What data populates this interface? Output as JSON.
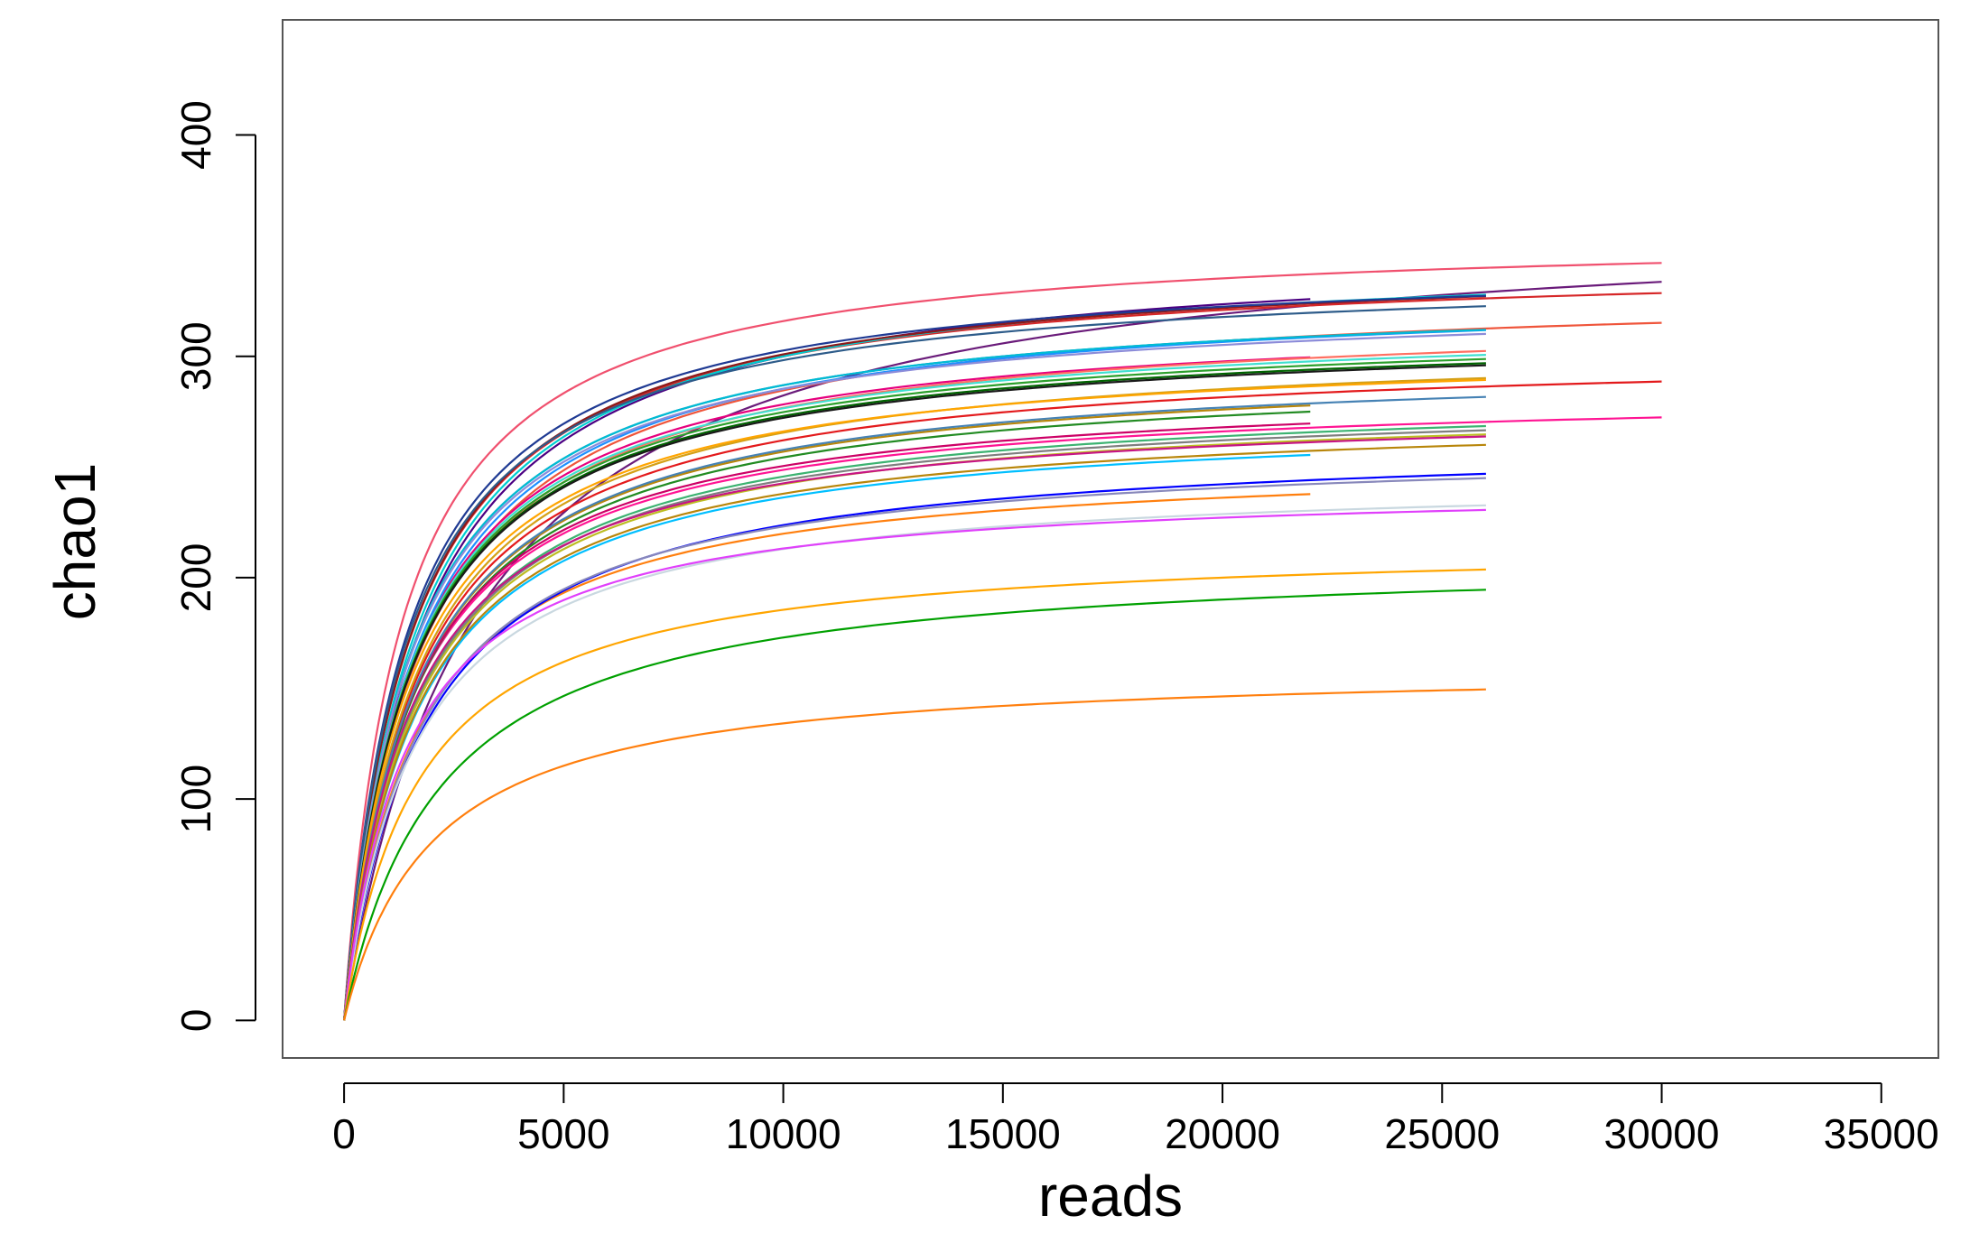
{
  "chart_data": {
    "type": "line",
    "title": "",
    "xlabel": "reads",
    "ylabel": "chao1",
    "xlim": [
      -1400,
      36300
    ],
    "ylim": [
      -17,
      452
    ],
    "x_ticks": [
      "0",
      "5000",
      "10000",
      "15000",
      "20000",
      "25000",
      "30000",
      "35000"
    ],
    "y_ticks": [
      "0",
      "100",
      "200",
      "300",
      "400"
    ],
    "grid": false,
    "legend": "none",
    "series": [
      {
        "end_x": 30000,
        "plateau": 367,
        "k": 3000,
        "color": "#6a1b7a"
      },
      {
        "end_x": 30000,
        "plateau": 357,
        "k": 1300,
        "color": "#f0506e"
      },
      {
        "end_x": 30000,
        "plateau": 345,
        "k": 1500,
        "color": "#d62728"
      },
      {
        "end_x": 30000,
        "plateau": 333,
        "k": 1700,
        "color": "#ef553b"
      },
      {
        "end_x": 30000,
        "plateau": 304,
        "k": 1600,
        "color": "#e31a1c"
      },
      {
        "end_x": 30000,
        "plateau": 286,
        "k": 1500,
        "color": "#ff1493"
      },
      {
        "end_x": 22000,
        "plateau": 351,
        "k": 1700,
        "color": "#4b0082"
      },
      {
        "end_x": 22000,
        "plateau": 330,
        "k": 1500,
        "color": "#1f77b4"
      },
      {
        "end_x": 22000,
        "plateau": 320,
        "k": 1500,
        "color": "#e6007e"
      },
      {
        "end_x": 22000,
        "plateau": 298,
        "k": 1600,
        "color": "#b8860b"
      },
      {
        "end_x": 22000,
        "plateau": 295,
        "k": 1600,
        "color": "#228b22"
      },
      {
        "end_x": 22000,
        "plateau": 288,
        "k": 1500,
        "color": "#cc0066"
      },
      {
        "end_x": 22000,
        "plateau": 274,
        "k": 1600,
        "color": "#00bfff"
      },
      {
        "end_x": 22000,
        "plateau": 255,
        "k": 1600,
        "color": "#ff7f0e"
      },
      {
        "end_x": 26000,
        "plateau": 348,
        "k": 1600,
        "color": "#00ced1"
      },
      {
        "end_x": 26000,
        "plateau": 346,
        "k": 1500,
        "color": "#8b1a1a"
      },
      {
        "end_x": 26000,
        "plateau": 345,
        "k": 1400,
        "color": "#1f3a93"
      },
      {
        "end_x": 26000,
        "plateau": 340,
        "k": 1400,
        "color": "#2e5c8a"
      },
      {
        "end_x": 26000,
        "plateau": 331,
        "k": 1600,
        "color": "#1e90ff"
      },
      {
        "end_x": 26000,
        "plateau": 330,
        "k": 1500,
        "color": "#00bcd4"
      },
      {
        "end_x": 26000,
        "plateau": 328,
        "k": 1500,
        "color": "#8c8cd9"
      },
      {
        "end_x": 26000,
        "plateau": 321,
        "k": 1600,
        "color": "#ff6f61"
      },
      {
        "end_x": 26000,
        "plateau": 318,
        "k": 1500,
        "color": "#40e0d0"
      },
      {
        "end_x": 26000,
        "plateau": 316,
        "k": 1500,
        "color": "#2ca02c"
      },
      {
        "end_x": 26000,
        "plateau": 314,
        "k": 1500,
        "color": "#006400"
      },
      {
        "end_x": 26000,
        "plateau": 313,
        "k": 1500,
        "color": "#1a1a1a"
      },
      {
        "end_x": 26000,
        "plateau": 308,
        "k": 1600,
        "color": "#d4a017"
      },
      {
        "end_x": 26000,
        "plateau": 306,
        "k": 1500,
        "color": "#ffa500"
      },
      {
        "end_x": 26000,
        "plateau": 299,
        "k": 1600,
        "color": "#4682b4"
      },
      {
        "end_x": 26000,
        "plateau": 285,
        "k": 1600,
        "color": "#3cb371"
      },
      {
        "end_x": 26000,
        "plateau": 283,
        "k": 1600,
        "color": "#7f7f7f"
      },
      {
        "end_x": 26000,
        "plateau": 281,
        "k": 1600,
        "color": "#bcbd22"
      },
      {
        "end_x": 26000,
        "plateau": 279,
        "k": 1500,
        "color": "#c71585"
      },
      {
        "end_x": 26000,
        "plateau": 276,
        "k": 1600,
        "color": "#b8860b"
      },
      {
        "end_x": 26000,
        "plateau": 264,
        "k": 1800,
        "color": "#0000ff"
      },
      {
        "end_x": 26000,
        "plateau": 261,
        "k": 1700,
        "color": "#8888bb"
      },
      {
        "end_x": 26000,
        "plateau": 247,
        "k": 1600,
        "color": "#c9d8e0"
      },
      {
        "end_x": 26000,
        "plateau": 243,
        "k": 1400,
        "color": "#e040fb"
      },
      {
        "end_x": 26000,
        "plateau": 217,
        "k": 1700,
        "color": "#ffa500"
      },
      {
        "end_x": 26000,
        "plateau": 211,
        "k": 2200,
        "color": "#00a000"
      },
      {
        "end_x": 26000,
        "plateau": 161,
        "k": 2000,
        "color": "#ff7f0e"
      }
    ]
  }
}
